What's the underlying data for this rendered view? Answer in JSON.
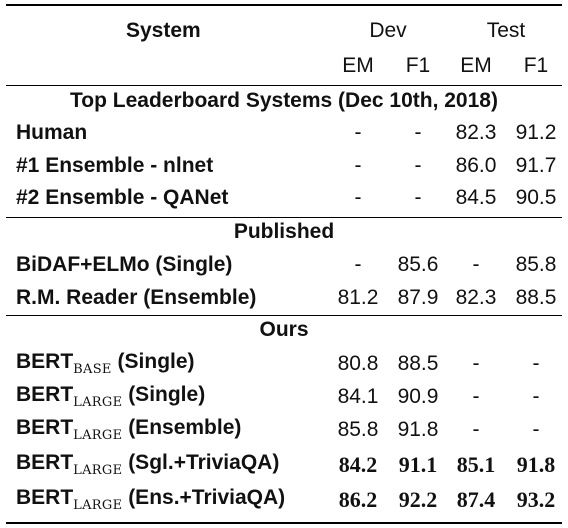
{
  "header": {
    "system": "System",
    "dev": "Dev",
    "test": "Test",
    "em": "EM",
    "f1": "F1"
  },
  "sections": {
    "leaderboard": "Top Leaderboard Systems (Dec 10th, 2018)",
    "published": "Published",
    "ours": "Ours"
  },
  "rows": [
    {
      "name": "Human",
      "sub": "",
      "suffix": "",
      "dev_em": "-",
      "dev_f1": "-",
      "test_em": "82.3",
      "test_f1": "91.2"
    },
    {
      "name": "#1 Ensemble - nlnet",
      "sub": "",
      "suffix": "",
      "dev_em": "-",
      "dev_f1": "-",
      "test_em": "86.0",
      "test_f1": "91.7"
    },
    {
      "name": "#2 Ensemble - QANet",
      "sub": "",
      "suffix": "",
      "dev_em": "-",
      "dev_f1": "-",
      "test_em": "84.5",
      "test_f1": "90.5"
    },
    {
      "name": "BiDAF+ELMo (Single)",
      "sub": "",
      "suffix": "",
      "dev_em": "-",
      "dev_f1": "85.6",
      "test_em": "-",
      "test_f1": "85.8"
    },
    {
      "name": "R.M. Reader (Ensemble)",
      "sub": "",
      "suffix": "",
      "dev_em": "81.2",
      "dev_f1": "87.9",
      "test_em": "82.3",
      "test_f1": "88.5"
    },
    {
      "name": "BERT",
      "sub": "BASE",
      "suffix": " (Single)",
      "dev_em": "80.8",
      "dev_f1": "88.5",
      "test_em": "-",
      "test_f1": "-"
    },
    {
      "name": "BERT",
      "sub": "LARGE",
      "suffix": " (Single)",
      "dev_em": "84.1",
      "dev_f1": "90.9",
      "test_em": "-",
      "test_f1": "-"
    },
    {
      "name": "BERT",
      "sub": "LARGE",
      "suffix": " (Ensemble)",
      "dev_em": "85.8",
      "dev_f1": "91.8",
      "test_em": "-",
      "test_f1": "-"
    },
    {
      "name": "BERT",
      "sub": "LARGE",
      "suffix": " (Sgl.+TriviaQA)",
      "dev_em": "84.2",
      "dev_f1": "91.1",
      "test_em": "85.1",
      "test_f1": "91.8"
    },
    {
      "name": "BERT",
      "sub": "LARGE",
      "suffix": " (Ens.+TriviaQA)",
      "dev_em": "86.2",
      "dev_f1": "92.2",
      "test_em": "87.4",
      "test_f1": "93.2"
    }
  ]
}
